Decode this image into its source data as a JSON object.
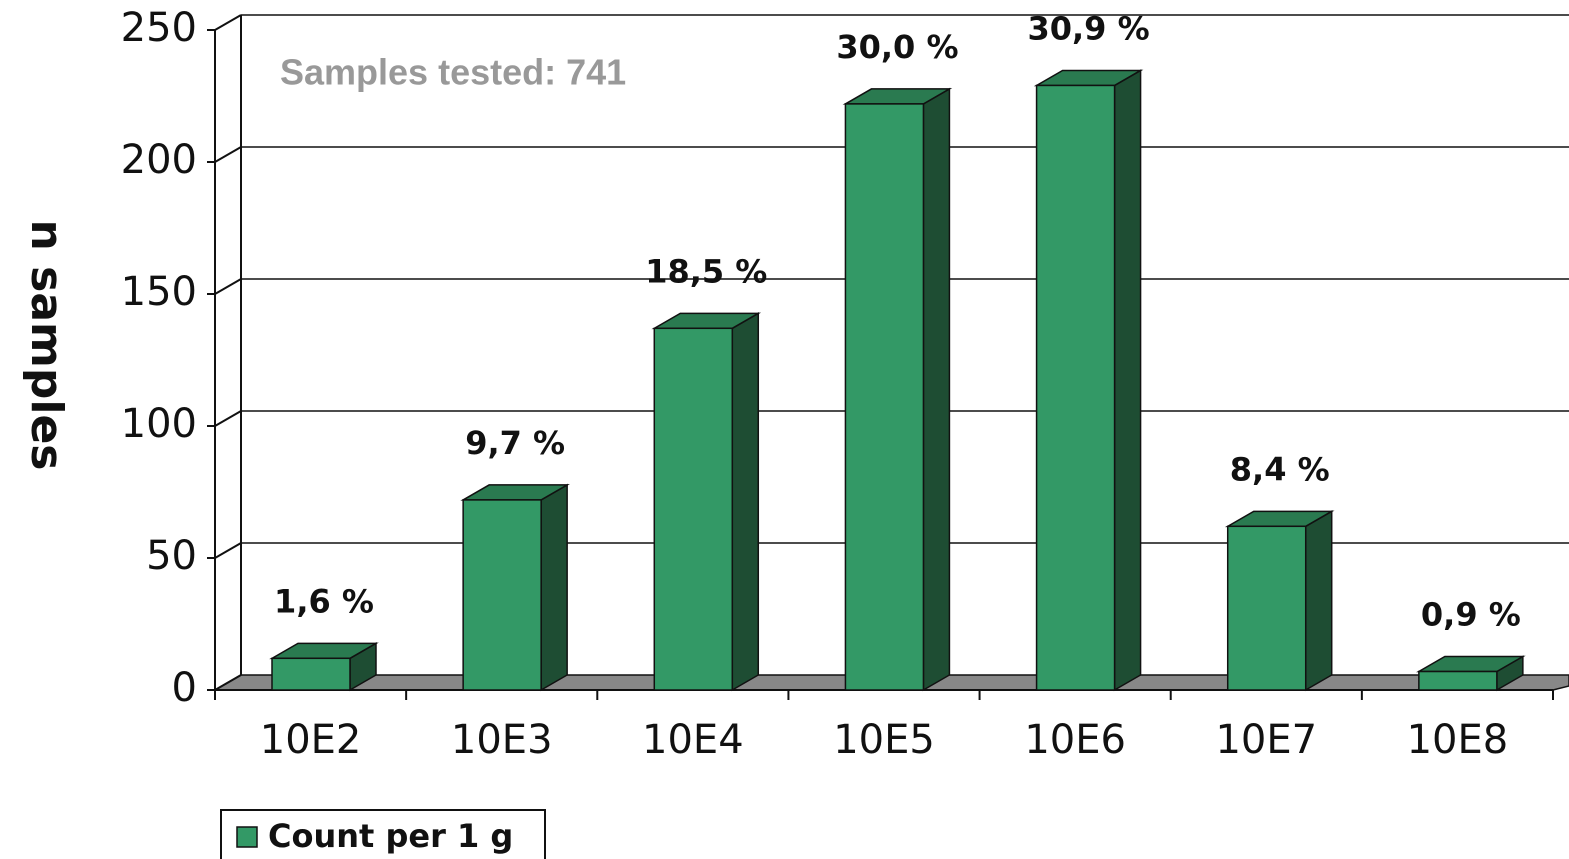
{
  "chart_data": {
    "type": "bar3d",
    "y_label": "n samples",
    "annotation": "Samples tested: 741",
    "categories": [
      "10E2",
      "10E3",
      "10E4",
      "10E5",
      "10E6",
      "10E7",
      "10E8"
    ],
    "series": [
      {
        "name": "Count per 1 g",
        "color": "#339966",
        "values": [
          12,
          72,
          137,
          222,
          229,
          62,
          7
        ]
      }
    ],
    "percent_labels": [
      "1,6 %",
      "9,7 %",
      "18,5 %",
      "30,0 %",
      "30,9 %",
      "8,4 %",
      "0,9 %"
    ],
    "ylim": [
      0,
      250
    ],
    "yticks": [
      0,
      50,
      100,
      150,
      200,
      250
    ],
    "grid": true
  }
}
